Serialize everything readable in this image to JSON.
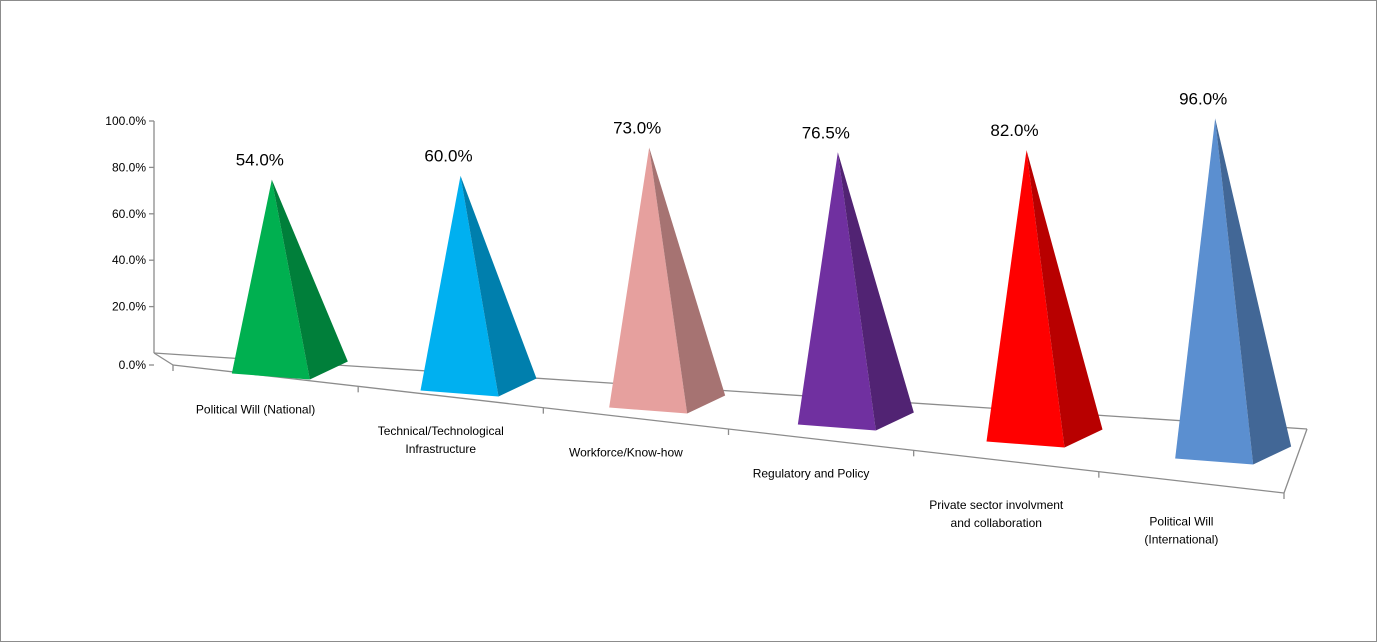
{
  "chart_data": {
    "type": "bar",
    "style": "3d-pyramid",
    "categories": [
      [
        "Political Will (National)"
      ],
      [
        "Technical/Technological",
        "Infrastructure"
      ],
      [
        "Workforce/Know-how"
      ],
      [
        "Regulatory and Policy"
      ],
      [
        "Private sector involvment",
        "and collaboration"
      ],
      [
        "Political Will",
        "(International)"
      ]
    ],
    "values": [
      54.0,
      60.0,
      73.0,
      76.5,
      82.0,
      96.0
    ],
    "value_labels": [
      "54.0%",
      "60.0%",
      "73.0%",
      "76.5%",
      "82.0%",
      "96.0%"
    ],
    "colors": [
      "#00b050",
      "#00b0f0",
      "#e6a09e",
      "#7030a0",
      "#ff0000",
      "#5b8fd0"
    ],
    "ylim": [
      0,
      100
    ],
    "y_ticks": [
      "0.0%",
      "20.0%",
      "40.0%",
      "60.0%",
      "80.0%",
      "100.0%"
    ],
    "title": "",
    "xlabel": "",
    "ylabel": "",
    "grid": false,
    "legend": "none"
  }
}
